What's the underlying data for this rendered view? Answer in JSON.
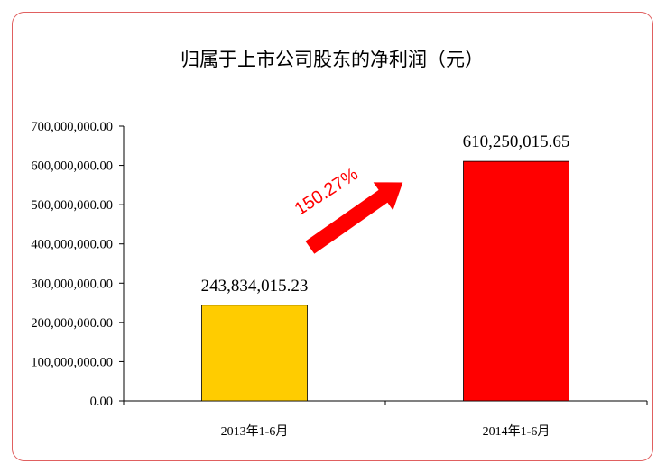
{
  "chart_data": {
    "type": "bar",
    "title": "归属于上市公司股东的净利润（元）",
    "categories": [
      "2013年1-6月",
      "2014年1-6月"
    ],
    "values": [
      243834015.23,
      610250015.65
    ],
    "value_labels": [
      "243,834,015.23",
      "610,250,015.65"
    ],
    "bar_colors": [
      "#ffcc00",
      "#ff0000"
    ],
    "ylim": [
      0,
      700000000
    ],
    "ytick_values": [
      0,
      100000000,
      200000000,
      300000000,
      400000000,
      500000000,
      600000000,
      700000000
    ],
    "ytick_labels": [
      "0.00",
      "100,000,000.00",
      "200,000,000.00",
      "300,000,000.00",
      "400,000,000.00",
      "500,000,000.00",
      "600,000,000.00",
      "700,000,000.00"
    ],
    "xlabel": "",
    "ylabel": "",
    "grid": false,
    "legend": "none",
    "annotation": {
      "text": "150.27%",
      "color": "#ff0000",
      "shape": "arrow-up-right"
    }
  }
}
